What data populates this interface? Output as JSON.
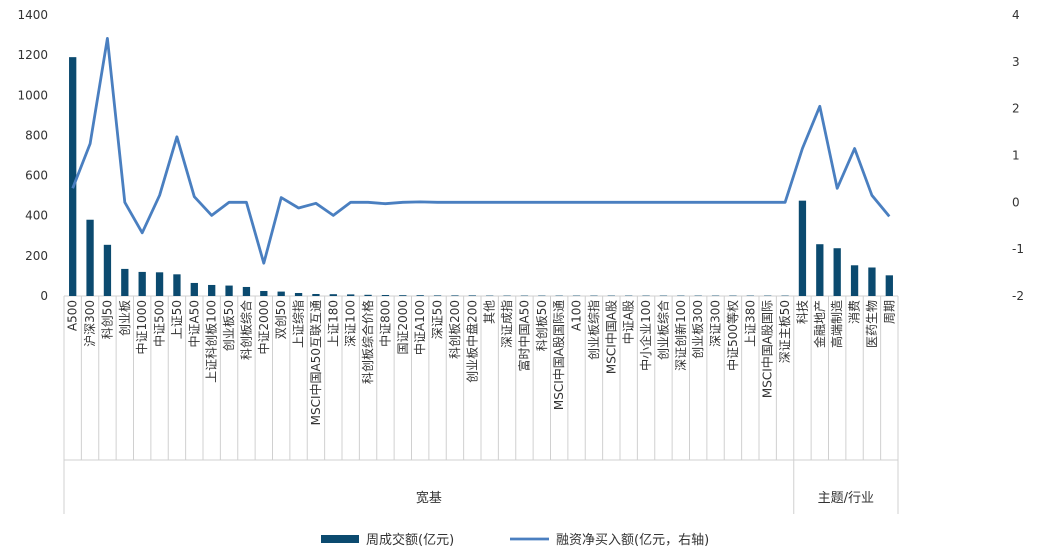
{
  "chart_data": {
    "type": "bar",
    "categories": [
      "A500",
      "沪深300",
      "科创50",
      "创业板",
      "中证1000",
      "中证500",
      "上证50",
      "中证A50",
      "上证科创板100",
      "创业板50",
      "科创板综合",
      "中证2000",
      "双创50",
      "上证综指",
      "MSCI中国A50互联互通",
      "上证180",
      "深证100",
      "科创板综合价格",
      "中证800",
      "国证2000",
      "中证A100",
      "深证50",
      "科创板200",
      "创业板中盘200",
      "其他",
      "深证成指",
      "富时中国A50",
      "科创板50",
      "MSCI中国A股国际通",
      "A100",
      "创业板综指",
      "MSCI中国A股",
      "中证A股",
      "中小企业100",
      "创业板综合",
      "深证创新100",
      "创业板300",
      "深证300",
      "中证500等权",
      "上证380",
      "MSCI中国A股国际",
      "深证主板50",
      "科技",
      "金融地产",
      "高端制造",
      "消费",
      "医药生物",
      "周期"
    ],
    "groups": [
      {
        "label": "宽基",
        "count": 42
      },
      {
        "label": "主题/行业",
        "count": 6
      }
    ],
    "series": [
      {
        "name": "周成交额(亿元)",
        "axis": "left",
        "type": "bar",
        "color": "#0b4a6f",
        "values": [
          1190,
          380,
          255,
          135,
          120,
          118,
          108,
          65,
          55,
          52,
          45,
          25,
          22,
          15,
          10,
          9,
          8,
          6,
          5,
          4,
          4,
          3,
          3,
          3,
          2,
          2,
          2,
          2,
          2,
          2,
          2,
          2,
          2,
          2,
          2,
          2,
          2,
          2,
          2,
          2,
          2,
          2,
          475,
          258,
          238,
          153,
          142,
          103
        ]
      },
      {
        "name": "融资净买入额(亿元，右轴)",
        "axis": "right",
        "type": "line",
        "color": "#4a7fc0",
        "values": [
          0.3,
          1.25,
          3.5,
          0.0,
          -0.65,
          0.15,
          1.4,
          0.12,
          -0.28,
          0.0,
          0.0,
          -1.3,
          0.1,
          -0.12,
          -0.02,
          -0.28,
          0.0,
          0.0,
          -0.03,
          0.0,
          0.01,
          0.0,
          0.0,
          0.0,
          0.0,
          0.0,
          0.0,
          0.0,
          0.0,
          0.0,
          0.0,
          0.0,
          0.0,
          0.0,
          0.0,
          0.0,
          0.0,
          0.0,
          0.0,
          0.0,
          0.0,
          0.0,
          1.15,
          2.05,
          0.3,
          1.15,
          0.15,
          -0.3
        ]
      }
    ],
    "y_left": {
      "min": 0,
      "max": 1400,
      "ticks": [
        0,
        200,
        400,
        600,
        800,
        1000,
        1200,
        1400
      ]
    },
    "y_right": {
      "min": -2,
      "max": 4,
      "ticks": [
        -2,
        -1,
        0,
        1,
        2,
        3,
        4
      ]
    },
    "grid": false,
    "legend_position": "bottom"
  }
}
